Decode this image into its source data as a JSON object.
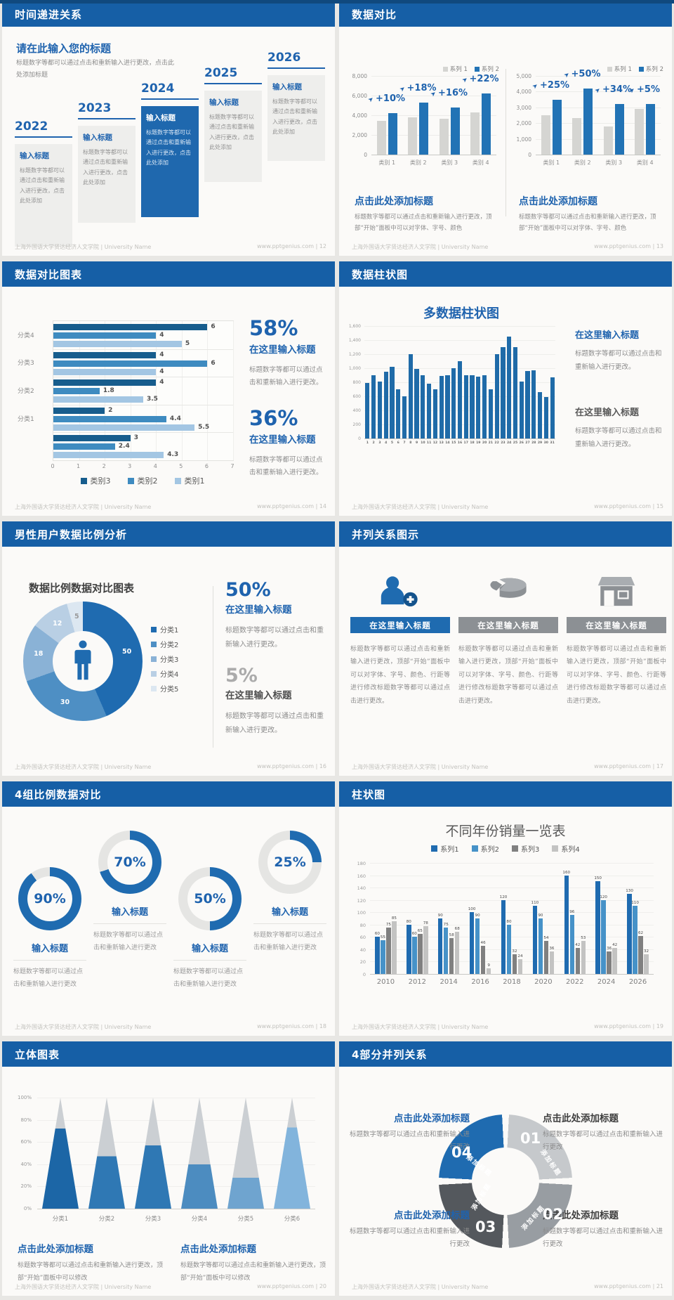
{
  "page": {
    "footer_left": "上海外国语大学贤达经济人文学院 | University Name",
    "site": "www.pptgenius.com",
    "accent_blue": "#1F63AE",
    "header_blue": "#165FA6"
  },
  "slides": {
    "s12": {
      "title": "时间递进关系",
      "page_no": "12",
      "intro_title": "请在此输入您的标题",
      "intro_body": "标题数字等都可以通过点击和重新输入进行更改，点击此处添加标题",
      "years": [
        "2022",
        "2023",
        "2024",
        "2025",
        "2026"
      ],
      "highlight_year": "2024",
      "box_title": "输入标题",
      "box_body": "标题数字等都可以通过点击和重新输入进行更改，点击此处添加"
    },
    "s13": {
      "title": "数据对比",
      "page_no": "13",
      "panel_title": "点击此处添加标题",
      "panel_body": "标题数字等都可以通过点击和重新输入进行更改，顶部“开始”面板中可以对字体、字号、颜色"
    },
    "s14": {
      "title": "数据对比图表",
      "page_no": "14",
      "stat1_value": "58%",
      "stat2_value": "36%",
      "stat_title": "在这里输入标题",
      "stat_body": "标题数字等都可以通过点击和重新输入进行更改。"
    },
    "s15": {
      "title": "数据柱状图",
      "page_no": "15",
      "chart_title": "多数据柱状图",
      "block1_title": "在这里输入标题",
      "block2_title": "在这里输入标题",
      "block_body": "标题数字等都可以通过点击和重新输入进行更改。"
    },
    "s16": {
      "title": "男性用户数据比例分析",
      "page_no": "16",
      "chart_title": "数据比例数据对比图表",
      "stat1_value": "50%",
      "stat2_value": "5%",
      "stat_title": "在这里输入标题",
      "stat_body": "标题数字等都可以通过点击和重新输入进行更改。"
    },
    "s17": {
      "title": "并列关系图示",
      "page_no": "17",
      "col_title": "在这里输入标题",
      "col_body": "标题数字等都可以通过点击和重新输入进行更改，顶部“开始”面板中可以对字体、字号、颜色、行距等进行修改标题数字等都可以通过点击进行更改。"
    },
    "s18": {
      "title": "4组比例数据对比",
      "page_no": "18",
      "item_title": "输入标题",
      "item_body": "标题数字等都可以通过点击和重新输入进行更改"
    },
    "s19": {
      "title": "柱状图",
      "page_no": "19"
    },
    "s20": {
      "title": "立体图表",
      "page_no": "20",
      "block_title": "点击此处添加标题",
      "block_body": "标题数字等都可以通过点击和重新输入进行更改，顶部“开始”面板中可以修改"
    },
    "s21": {
      "title": "4部分并列关系",
      "page_no": "21",
      "block_title": "点击此处添加标题",
      "block_body": "标题数字等都可以通过点击和重新输入进行更改",
      "segment_label": "添加标题"
    }
  },
  "chart_data": [
    {
      "slide": "13-left",
      "type": "bar",
      "categories": [
        "类别 1",
        "类别 2",
        "类别 3",
        "类别 4"
      ],
      "series": [
        {
          "name": "系列 1",
          "color": "#D5D5D2",
          "values": [
            3450,
            3800,
            3650,
            4300
          ]
        },
        {
          "name": "系列 2",
          "color": "#2273B5",
          "values": [
            4200,
            5300,
            4800,
            6250
          ]
        }
      ],
      "growth_labels": [
        "+10%",
        "+18%",
        "+16%",
        "+22%"
      ],
      "ylim": [
        0,
        8000
      ],
      "ytick_step": 2000,
      "grid": true,
      "legend_position": "top-right"
    },
    {
      "slide": "13-right",
      "type": "bar",
      "categories": [
        "类别 1",
        "类别 2",
        "类别 3",
        "类别 4"
      ],
      "series": [
        {
          "name": "系列 1",
          "color": "#D5D5D2",
          "values": [
            2500,
            2300,
            1800,
            2900
          ]
        },
        {
          "name": "系列 2",
          "color": "#2273B5",
          "values": [
            3500,
            4200,
            3200,
            3200
          ]
        }
      ],
      "growth_labels": [
        "+25%",
        "+50%",
        "+34%",
        "+5%"
      ],
      "ylim": [
        0,
        5000
      ],
      "ytick_step": 1000,
      "grid": true,
      "legend_position": "top-right"
    },
    {
      "slide": "14",
      "type": "bar-horizontal",
      "groups": [
        "分类4",
        "分类3",
        "分类2",
        "分类1",
        ""
      ],
      "series": [
        {
          "name": "类别3",
          "color": "#175D8D",
          "values": [
            6,
            4,
            4,
            2,
            3
          ]
        },
        {
          "name": "类别2",
          "color": "#3E8BC0",
          "values": [
            4,
            6,
            1.8,
            4.4,
            2.4
          ]
        },
        {
          "name": "类别1",
          "color": "#A3C6E3",
          "values": [
            5,
            4,
            3.5,
            5.5,
            4.3
          ]
        }
      ],
      "xlim": [
        0,
        7
      ],
      "xtick_step": 1,
      "grid": true,
      "legend_position": "bottom"
    },
    {
      "slide": "15",
      "type": "bar",
      "title": "多数据柱状图",
      "x": [
        "1",
        "2",
        "3",
        "4",
        "5",
        "6",
        "7",
        "8",
        "9",
        "10",
        "11",
        "12",
        "13",
        "14",
        "15",
        "16",
        "17",
        "18",
        "19",
        "20",
        "21",
        "22",
        "23",
        "24",
        "25",
        "26",
        "27",
        "28",
        "29",
        "30",
        "31"
      ],
      "values": [
        790,
        900,
        810,
        950,
        1020,
        700,
        600,
        1200,
        990,
        900,
        780,
        700,
        890,
        900,
        1000,
        1100,
        900,
        900,
        880,
        900,
        700,
        1200,
        1300,
        1450,
        1300,
        810,
        960,
        970,
        660,
        590,
        870
      ],
      "color": "#1F6BA8",
      "ylim": [
        0,
        1600
      ],
      "ytick_step": 200,
      "grid": true
    },
    {
      "slide": "16",
      "type": "pie",
      "title": "数据比例数据对比图表",
      "labels": [
        "分类1",
        "分类2",
        "分类3",
        "分类4",
        "分类5"
      ],
      "values": [
        50,
        30,
        18,
        12,
        5
      ],
      "colors": [
        "#1F6BB0",
        "#4E8FC4",
        "#8AB2D6",
        "#B9CFE4",
        "#DCE7F1"
      ],
      "center_icon": "male-person-icon"
    },
    {
      "slide": "18",
      "type": "pie",
      "rings": [
        90,
        70,
        50,
        25
      ],
      "ring_color": "#1F6BB0",
      "track_color": "#E5E5E3"
    },
    {
      "slide": "19",
      "type": "bar",
      "title": "不同年份销量一览表",
      "categories": [
        "2010",
        "2012",
        "2014",
        "2016",
        "2018",
        "2020",
        "2022",
        "2024",
        "2026"
      ],
      "series": [
        {
          "name": "系列1",
          "color": "#1F6BB0",
          "values": [
            60,
            80,
            90,
            100,
            120,
            110,
            160,
            150,
            130
          ]
        },
        {
          "name": "系列2",
          "color": "#4692C8",
          "values": [
            55,
            60,
            75,
            90,
            80,
            90,
            96,
            120,
            110
          ]
        },
        {
          "name": "系列3",
          "color": "#808080",
          "values": [
            75,
            65,
            58,
            46,
            32,
            54,
            42,
            36,
            62
          ]
        },
        {
          "name": "系列4",
          "color": "#C3C3C2",
          "values": [
            85,
            78,
            68,
            9,
            24,
            36,
            53,
            42,
            32
          ]
        }
      ],
      "ylim": [
        0,
        180
      ],
      "ytick_step": 20,
      "grid": true,
      "legend_position": "top",
      "value_labels": true
    },
    {
      "slide": "20",
      "type": "bar",
      "subtype": "pyramid",
      "categories": [
        "分类1",
        "分类2",
        "分类3",
        "分类4",
        "分类5",
        "分类6"
      ],
      "fill_percent": [
        72,
        47,
        57,
        40,
        28,
        73
      ],
      "colors": [
        "#1C66A6",
        "#2F78B4",
        "#2F78B4",
        "#4C8CC0",
        "#6FA4CF",
        "#82B4DC"
      ],
      "top_color": "#CBCFD3",
      "ylim": [
        0,
        100
      ],
      "ytick_step": 20,
      "ytick_suffix": "%"
    },
    {
      "slide": "21",
      "type": "pie",
      "subtype": "4-part-ring",
      "segments": [
        {
          "no": "01",
          "color": "#C6C9CC"
        },
        {
          "no": "02",
          "color": "#989DA2"
        },
        {
          "no": "03",
          "color": "#54585D"
        },
        {
          "no": "04",
          "color": "#1F6BB0"
        }
      ]
    }
  ]
}
